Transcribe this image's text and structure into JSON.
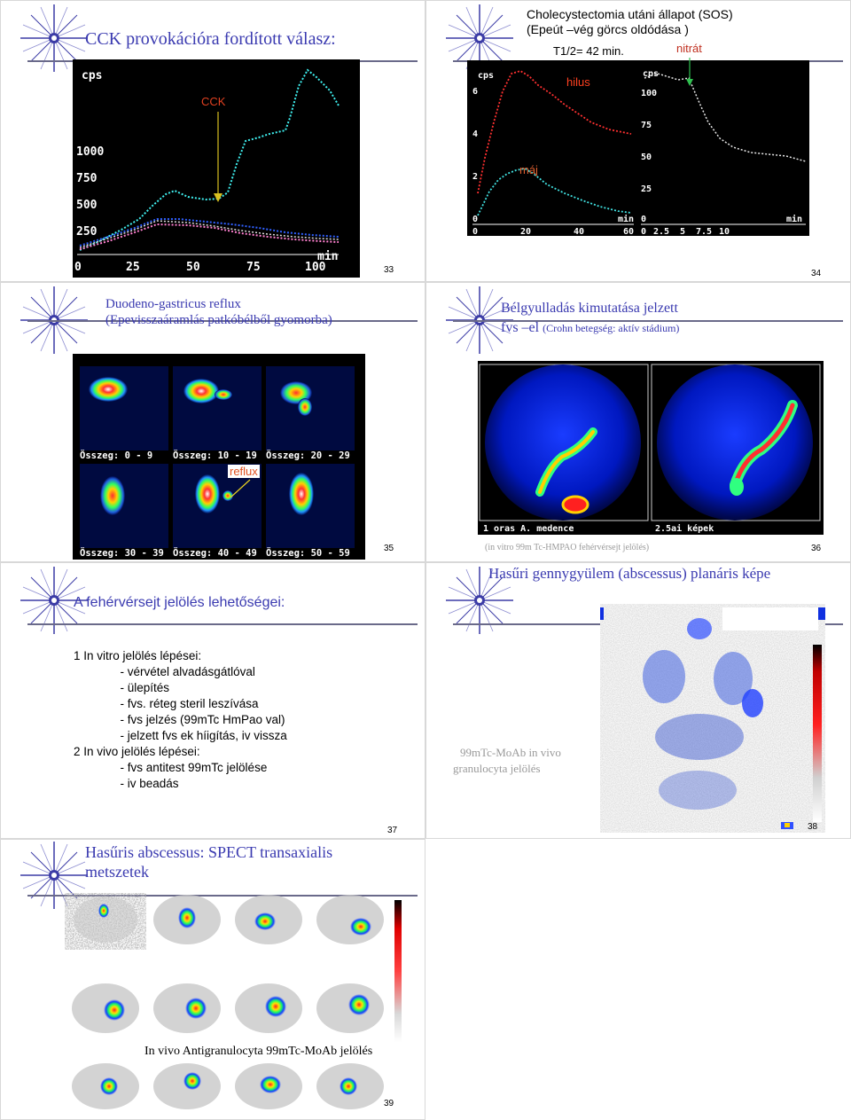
{
  "slides": {
    "s33": {
      "title": "CCK provokációra fordított válasz:",
      "number": "33",
      "chart": {
        "y_unit": "cps",
        "y_ticks": [
          "1000",
          "750",
          "500",
          "250"
        ],
        "x_ticks": [
          "0",
          "25",
          "50",
          "75",
          "100"
        ],
        "x_unit": "min",
        "annotation": "CCK"
      }
    },
    "s34": {
      "title_line1": "Cholecystectomia utáni állapot (SOS)",
      "title_line2": "(Epeút –vég görcs oldódása )",
      "t_half": "T1/2= 42 min.",
      "nitrate": "nitrát",
      "number": "34",
      "left_chart": {
        "y_unit": "cps",
        "y_ticks": [
          "6",
          "4",
          "2",
          "0"
        ],
        "x_ticks": [
          "0",
          "20",
          "40",
          "60"
        ],
        "x_unit": "min",
        "label_hilus": "hilus",
        "label_liver": "máj"
      },
      "right_chart": {
        "y_unit": "cps",
        "y_ticks": [
          "100",
          "75",
          "50",
          "25",
          "0"
        ],
        "x_ticks": [
          "0",
          "2.5",
          "5",
          "7.5",
          "10"
        ],
        "x_unit": "min"
      }
    },
    "s35": {
      "title_line1": "Duodeno-gastricus reflux",
      "title_line2": "(Epevisszaáramlás patkóbélből gyomorba)",
      "frames": [
        "Összeg: 0 - 9",
        "Összeg: 10 - 19",
        "Összeg: 20 - 29",
        "Összeg: 30 - 39",
        "Összeg: 40 - 49",
        "Összeg: 50 - 59"
      ],
      "reflux_label": "reflux",
      "number": "35"
    },
    "s36": {
      "title_line1": "Bélgyulladás kimutatása jelzett",
      "title_line2_main": "fvs –el",
      "title_line2_small": "(Crohn betegség: aktív stádium)",
      "left_caption": "1 oras A. medence",
      "right_caption": "2.5ai képek",
      "note": "(in vitro 99m Tc-HMPAO fehérvérsejt jelölés)",
      "number": "36"
    },
    "s37": {
      "title": "A fehérvérsejt jelölés lehetőségei:",
      "lines": [
        "1 In vitro jelölés lépései:",
        "              - vérvétel alvadásgátlóval",
        "              - ülepítés",
        "              - fvs. réteg steril leszívása",
        "              - fvs jelzés (99mTc HmPao val)",
        "              - jelzett fvs ek híigítás, iv vissza",
        "2 In vivo jelölés lépései:",
        "              - fvs antitest 99mTc jelölése",
        "              - iv beadás"
      ],
      "number": "37"
    },
    "s38": {
      "title": "Hasűri gennygyülem (abscessus) planáris képe",
      "note_line1": "99mTc-MoAb in vivo",
      "note_line2": "granulocyta jelölés",
      "number": "38"
    },
    "s39": {
      "title_line1": "Hasűris abscessus: SPECT transaxialis",
      "title_line2": "metszetek",
      "caption": "In vivo Antigranulocyta  99mTc-MoAb  jelölés",
      "number": "39"
    }
  },
  "colors": {
    "title_blue": "#3a3ab0",
    "plot_bg": "#000000"
  }
}
